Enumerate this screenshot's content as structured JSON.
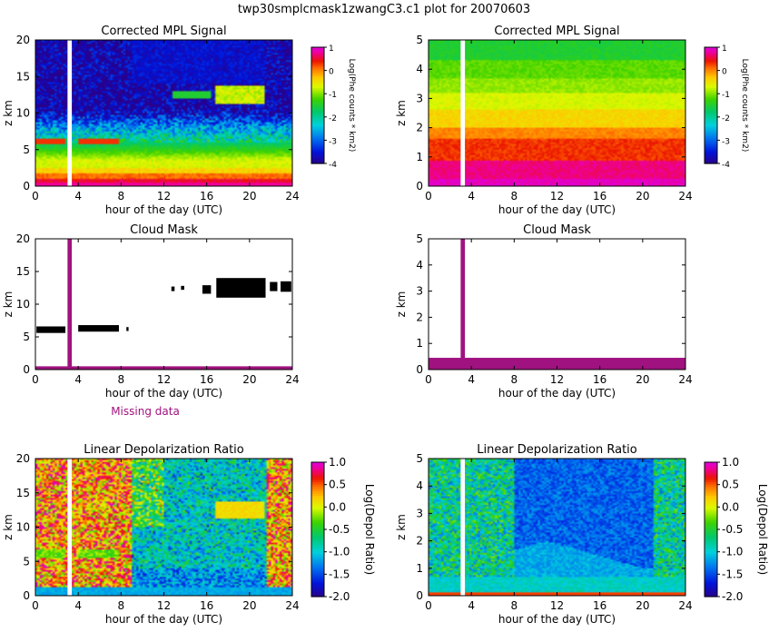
{
  "suptitle": "twp30smplcmask1zwangC3.c1 plot  for 20070603",
  "missing_label": "Missing data",
  "colors": {
    "missing": "#a0127f",
    "cloud": "#000000",
    "background": "#ffffff"
  },
  "chart_data": [
    {
      "id": "mpl-full",
      "type": "heatmap",
      "title": "Corrected MPL Signal",
      "xlabel": "hour of the day (UTC)",
      "ylabel": "z  km",
      "xlim": [
        0,
        24
      ],
      "ylim": [
        0,
        20
      ],
      "x_ticks": [
        0,
        4,
        8,
        12,
        16,
        20,
        24
      ],
      "y_ticks": [
        0,
        5,
        10,
        15,
        20
      ],
      "missing_x": [
        3.0,
        3.4
      ],
      "colorbar": {
        "label": "Log(Phe counts * km2)",
        "range": [
          -4,
          1
        ],
        "ticks": [
          "1",
          "0",
          "-1",
          "-2",
          "-3",
          "-4"
        ]
      }
    },
    {
      "id": "mpl-low",
      "type": "heatmap",
      "title": "Corrected MPL Signal",
      "xlabel": "hour of the day (UTC)",
      "ylabel": "z  km",
      "xlim": [
        0,
        24
      ],
      "ylim": [
        0,
        5
      ],
      "x_ticks": [
        0,
        4,
        8,
        12,
        16,
        20,
        24
      ],
      "y_ticks": [
        0,
        1,
        2,
        3,
        4,
        5
      ],
      "missing_x": [
        3.0,
        3.4
      ],
      "colorbar": {
        "label": "Log(Phe counts * km2)",
        "range": [
          -4,
          1
        ],
        "ticks": [
          "1",
          "0",
          "-1",
          "-2",
          "-3",
          "-4"
        ]
      }
    },
    {
      "id": "mask-full",
      "type": "heatmap",
      "title": "Cloud Mask",
      "xlabel": "hour of the day (UTC)",
      "ylabel": "z  km",
      "xlim": [
        0,
        24
      ],
      "ylim": [
        0,
        20
      ],
      "x_ticks": [
        0,
        4,
        8,
        12,
        16,
        20,
        24
      ],
      "y_ticks": [
        0,
        5,
        10,
        15,
        20
      ],
      "missing_x": [
        3.0,
        3.4
      ],
      "missing_below_z": 0.5,
      "cloud_layers": [
        {
          "x0": 0.1,
          "x1": 2.8,
          "z0": 5.6,
          "z1": 6.6
        },
        {
          "x0": 4.0,
          "x1": 7.8,
          "z0": 5.8,
          "z1": 6.8
        },
        {
          "x0": 8.5,
          "x1": 8.7,
          "z0": 5.9,
          "z1": 6.5
        },
        {
          "x0": 12.7,
          "x1": 13.0,
          "z0": 12.0,
          "z1": 12.7
        },
        {
          "x0": 13.6,
          "x1": 13.9,
          "z0": 12.2,
          "z1": 12.8
        },
        {
          "x0": 15.6,
          "x1": 16.4,
          "z0": 11.6,
          "z1": 12.9
        },
        {
          "x0": 16.9,
          "x1": 21.5,
          "z0": 11.0,
          "z1": 14.0
        },
        {
          "x0": 21.9,
          "x1": 22.6,
          "z0": 12.0,
          "z1": 13.4
        },
        {
          "x0": 22.9,
          "x1": 23.9,
          "z0": 11.9,
          "z1": 13.5
        }
      ]
    },
    {
      "id": "mask-low",
      "type": "heatmap",
      "title": "Cloud Mask",
      "xlabel": "hour of the day (UTC)",
      "ylabel": "z  km",
      "xlim": [
        0,
        24
      ],
      "ylim": [
        0,
        5
      ],
      "x_ticks": [
        0,
        4,
        8,
        12,
        16,
        20,
        24
      ],
      "y_ticks": [
        0,
        1,
        2,
        3,
        4,
        5
      ],
      "missing_x": [
        3.0,
        3.4
      ],
      "missing_below_z": 0.45,
      "cloud_layers": []
    },
    {
      "id": "ldr-full",
      "type": "heatmap",
      "title": "Linear Depolarization Ratio",
      "xlabel": "hour of the day (UTC)",
      "ylabel": "z  km",
      "xlim": [
        0,
        24
      ],
      "ylim": [
        0,
        20
      ],
      "x_ticks": [
        0,
        4,
        8,
        12,
        16,
        20,
        24
      ],
      "y_ticks": [
        0,
        5,
        10,
        15,
        20
      ],
      "missing_x": [
        3.0,
        3.4
      ],
      "colorbar": {
        "label": "Log(Depol Ratio)",
        "range": [
          -2,
          1
        ],
        "ticks": [
          "1.0",
          "0.5",
          "0.0",
          "-0.5",
          "-1.0",
          "-1.5",
          "-2.0"
        ]
      }
    },
    {
      "id": "ldr-low",
      "type": "heatmap",
      "title": "Linear Depolarization Ratio",
      "xlabel": "hour of the day (UTC)",
      "ylabel": "z  km",
      "xlim": [
        0,
        24
      ],
      "ylim": [
        0,
        5
      ],
      "x_ticks": [
        0,
        4,
        8,
        12,
        16,
        20,
        24
      ],
      "y_ticks": [
        0,
        1,
        2,
        3,
        4,
        5
      ],
      "missing_x": [
        3.0,
        3.4
      ],
      "colorbar": {
        "label": "Log(Depol Ratio)",
        "range": [
          -2,
          1
        ],
        "ticks": [
          "1.0",
          "0.5",
          "0.0",
          "-0.5",
          "-1.0",
          "-1.5",
          "-2.0"
        ]
      }
    }
  ]
}
